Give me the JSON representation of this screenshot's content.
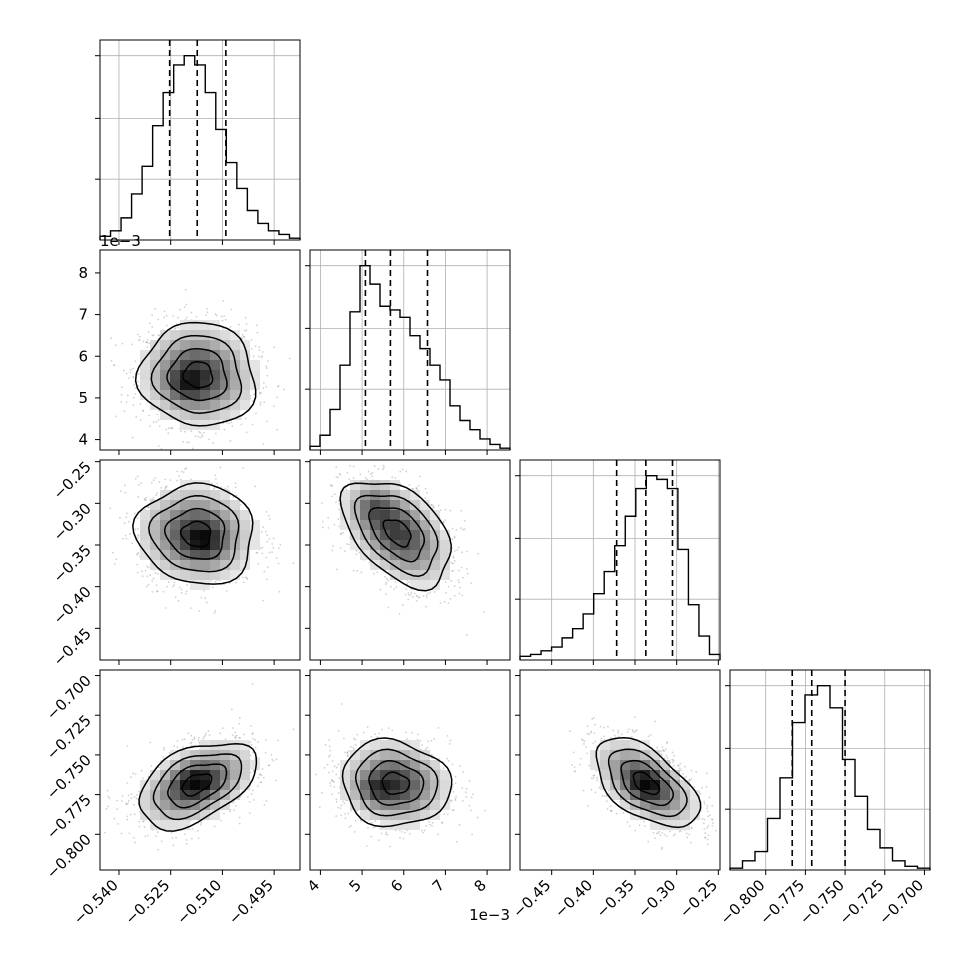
{
  "chart_data": {
    "type": "corner",
    "parameters": [
      {
        "range": [
          -0.5455,
          -0.4875
        ],
        "ticks": [
          -0.54,
          -0.525,
          -0.51,
          -0.495
        ],
        "tick_labels": [
          "−0.540",
          "−0.525",
          "−0.510",
          "−0.495"
        ],
        "quantiles": [
          -0.5253,
          -0.5173,
          -0.509
        ],
        "hist_counts": [
          2,
          5,
          12,
          25,
          40,
          62,
          80,
          95,
          100,
          95,
          80,
          60,
          42,
          28,
          16,
          9,
          5,
          3,
          1
        ]
      },
      {
        "range": [
          3.75,
          8.55
        ],
        "ticks": [
          4,
          5,
          6,
          7,
          8
        ],
        "tick_labels": [
          "4",
          "5",
          "6",
          "7",
          "8"
        ],
        "offset_label": "1e−3",
        "quantiles": [
          5.08,
          5.68,
          6.57
        ],
        "hist_counts": [
          2,
          8,
          22,
          46,
          75,
          100,
          90,
          78,
          76,
          72,
          62,
          55,
          46,
          38,
          24,
          16,
          11,
          6,
          3,
          1
        ]
      },
      {
        "range": [
          -0.488,
          -0.248
        ],
        "ticks": [
          -0.45,
          -0.4,
          -0.35,
          -0.3,
          -0.25
        ],
        "tick_labels": [
          "−0.45",
          "−0.40",
          "−0.35",
          "−0.30",
          "−0.25"
        ],
        "quantiles": [
          -0.372,
          -0.337,
          -0.305
        ],
        "hist_counts": [
          2,
          3,
          5,
          7,
          12,
          17,
          25,
          36,
          48,
          62,
          78,
          93,
          100,
          98,
          93,
          60,
          30,
          13,
          3
        ]
      },
      {
        "range": [
          -0.8225,
          -0.6965
        ],
        "ticks": [
          -0.8,
          -0.775,
          -0.75,
          -0.725,
          -0.7
        ],
        "tick_labels": [
          "−0.800",
          "−0.775",
          "−0.750",
          "−0.725",
          "−0.700"
        ],
        "quantiles": [
          -0.7833,
          -0.771,
          -0.75
        ],
        "hist_counts": [
          1,
          5,
          10,
          28,
          50,
          80,
          95,
          100,
          88,
          60,
          40,
          22,
          12,
          5,
          2,
          1
        ]
      }
    ],
    "pairs": [
      {
        "row": 1,
        "col": 0,
        "center": [
          -0.517,
          5.55
        ],
        "sigma": [
          0.0084,
          0.62
        ],
        "rho": -0.05,
        "peak": [
          -0.521,
          5.3
        ]
      },
      {
        "row": 2,
        "col": 0,
        "center": [
          -0.5175,
          -0.337
        ],
        "sigma": [
          0.0085,
          0.03
        ],
        "rho": -0.05,
        "peak": [
          -0.515,
          -0.347
        ]
      },
      {
        "row": 2,
        "col": 1,
        "center": [
          5.85,
          -0.335
        ],
        "sigma": [
          0.65,
          0.032
        ],
        "rho": -0.45,
        "peak": [
          5.27,
          -0.302
        ]
      },
      {
        "row": 3,
        "col": 0,
        "center": [
          -0.5175,
          -0.7685
        ],
        "sigma": [
          0.0085,
          0.0135
        ],
        "rho": 0.45,
        "peak": [
          -0.518,
          -0.767
        ]
      },
      {
        "row": 3,
        "col": 1,
        "center": [
          5.8,
          -0.768
        ],
        "sigma": [
          0.65,
          0.0135
        ],
        "rho": -0.08,
        "peak": [
          5.3,
          -0.772
        ]
      },
      {
        "row": 3,
        "col": 2,
        "center": [
          -0.337,
          -0.768
        ],
        "sigma": [
          0.031,
          0.014
        ],
        "rho": -0.55,
        "peak": [
          -0.337,
          -0.769
        ]
      }
    ],
    "y_axes": [
      {
        "row": 1,
        "ticks": [
          4,
          5,
          6,
          7,
          8
        ],
        "tick_labels": [
          "4",
          "5",
          "6",
          "7",
          "8"
        ],
        "offset_label": "1e−3"
      },
      {
        "row": 2,
        "ticks": [
          -0.45,
          -0.4,
          -0.35,
          -0.3,
          -0.25
        ],
        "tick_labels": [
          "−0.45",
          "−0.40",
          "−0.35",
          "−0.30",
          "−0.25"
        ]
      },
      {
        "row": 3,
        "ticks": [
          -0.8,
          -0.775,
          -0.75,
          -0.725,
          -0.7
        ],
        "tick_labels": [
          "−0.800",
          "−0.775",
          "−0.750",
          "−0.725",
          "−0.700"
        ]
      }
    ],
    "grid": true,
    "colors": {
      "line": "#000000",
      "grid": "#b0b0b0",
      "scatter": "#9a9a9a"
    }
  }
}
